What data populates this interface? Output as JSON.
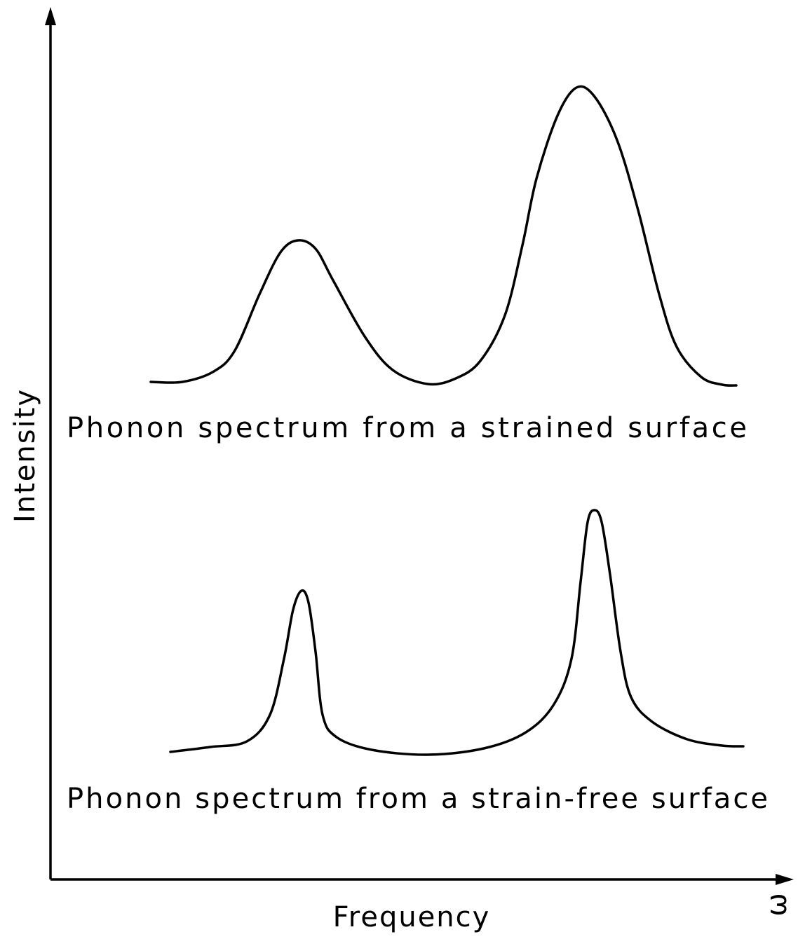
{
  "figure": {
    "y_axis_label": "Intensity",
    "x_axis_label": "Frequency",
    "x_axis_symbol": "ω",
    "curves": [
      {
        "label": "Phonon spectrum from a strained surface"
      },
      {
        "label": "Phonon spectrum from a strain-free surface"
      }
    ]
  }
}
